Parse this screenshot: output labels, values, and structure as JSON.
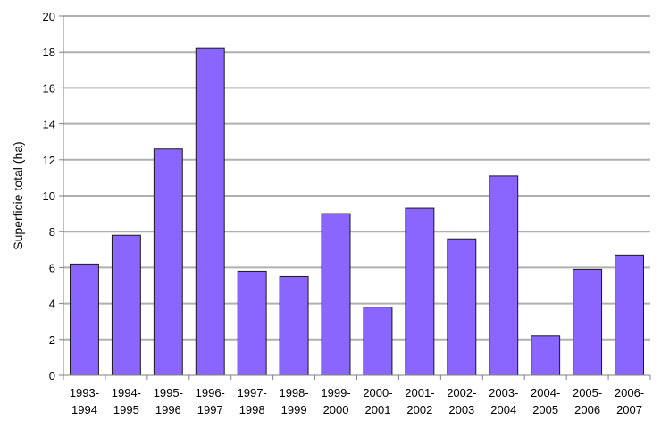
{
  "chart_data": {
    "type": "bar",
    "title": "",
    "xlabel": "",
    "ylabel": "Superficie total (ha)",
    "ylim": [
      0,
      20
    ],
    "yticks": [
      0,
      2,
      4,
      6,
      8,
      10,
      12,
      14,
      16,
      18,
      20
    ],
    "grid": true,
    "legend": "none",
    "categories": [
      [
        "1993-",
        "1994"
      ],
      [
        "1994-",
        "1995"
      ],
      [
        "1995-",
        "1996"
      ],
      [
        "1996-",
        "1997"
      ],
      [
        "1997-",
        "1998"
      ],
      [
        "1998-",
        "1999"
      ],
      [
        "1999-",
        "2000"
      ],
      [
        "2000-",
        "2001"
      ],
      [
        "2001-",
        "2002"
      ],
      [
        "2002-",
        "2003"
      ],
      [
        "2003-",
        "2004"
      ],
      [
        "2004-",
        "2005"
      ],
      [
        "2005-",
        "2006"
      ],
      [
        "2006-",
        "2007"
      ]
    ],
    "values": [
      6.2,
      7.8,
      12.6,
      18.2,
      5.8,
      5.5,
      9.0,
      3.8,
      9.3,
      7.6,
      11.1,
      2.2,
      5.9,
      6.7
    ],
    "colors": {
      "bar_fill": "#8a66ff",
      "bar_stroke": "#1a1a1a",
      "grid": "#b0b0b0",
      "axis": "#808080"
    }
  }
}
